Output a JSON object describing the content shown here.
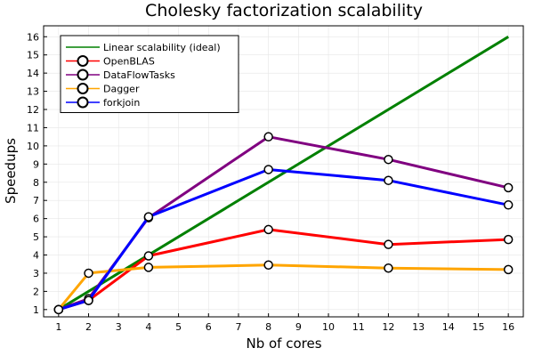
{
  "chart_data": {
    "type": "line",
    "title": "Cholesky factorization scalability",
    "xlabel": "Nb of cores",
    "ylabel": "Speedups",
    "xlim": [
      0.5,
      16.5
    ],
    "ylim": [
      0.6,
      16.6
    ],
    "x_ticks": [
      1,
      2,
      3,
      4,
      5,
      6,
      7,
      8,
      9,
      10,
      11,
      12,
      13,
      14,
      15,
      16
    ],
    "y_ticks": [
      1,
      2,
      3,
      4,
      5,
      6,
      7,
      8,
      9,
      10,
      11,
      12,
      13,
      14,
      15,
      16
    ],
    "grid": true,
    "legend_position": "top-left",
    "series": [
      {
        "name": "Linear scalability (ideal)",
        "color": "#008000",
        "markers": false,
        "x": [
          1,
          16
        ],
        "y": [
          1,
          16
        ]
      },
      {
        "name": "OpenBLAS",
        "color": "#ff0000",
        "markers": true,
        "x": [
          1,
          2,
          4,
          8,
          12,
          16
        ],
        "y": [
          1.0,
          1.5,
          3.95,
          5.4,
          4.58,
          4.85
        ]
      },
      {
        "name": "DataFlowTasks",
        "color": "#800080",
        "markers": true,
        "x": [
          1,
          2,
          4,
          8,
          12,
          16
        ],
        "y": [
          1.0,
          1.6,
          6.05,
          10.5,
          9.25,
          7.7
        ]
      },
      {
        "name": "Dagger",
        "color": "#ffa500",
        "markers": true,
        "x": [
          1,
          2,
          4,
          8,
          12,
          16
        ],
        "y": [
          1.0,
          3.0,
          3.32,
          3.45,
          3.28,
          3.2
        ]
      },
      {
        "name": "forkjoin",
        "color": "#0000ff",
        "markers": true,
        "x": [
          1,
          2,
          4,
          8,
          12,
          16
        ],
        "y": [
          1.0,
          1.5,
          6.1,
          8.7,
          8.1,
          6.75
        ]
      }
    ]
  }
}
